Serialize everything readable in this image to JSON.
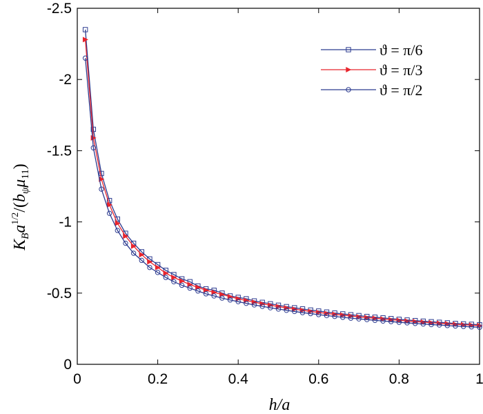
{
  "chart_data": {
    "type": "line",
    "title": "",
    "xlabel": "h/a",
    "ylabel": "K_B a^{1/2}/(b_ψ μ_11)",
    "xlim": [
      0,
      1
    ],
    "ylim": [
      0,
      -2.5
    ],
    "y_axis_reversed": true,
    "x_ticks": [
      0,
      0.2,
      0.4,
      0.6,
      0.8,
      1
    ],
    "x_tick_labels": [
      "0",
      "0.2",
      "0.4",
      "0.6",
      "0.8",
      "1"
    ],
    "y_ticks": [
      0,
      -0.5,
      -1,
      -1.5,
      -2,
      -2.5
    ],
    "y_tick_labels": [
      "0",
      "-0.5",
      "-1",
      "-1.5",
      "-2",
      "-2.5"
    ],
    "grid": false,
    "legend_position": "top-right",
    "x": [
      0.02,
      0.04,
      0.06,
      0.08,
      0.1,
      0.12,
      0.14,
      0.16,
      0.18,
      0.2,
      0.22,
      0.24,
      0.26,
      0.28,
      0.3,
      0.32,
      0.34,
      0.36,
      0.38,
      0.4,
      0.42,
      0.44,
      0.46,
      0.48,
      0.5,
      0.52,
      0.54,
      0.56,
      0.58,
      0.6,
      0.62,
      0.64,
      0.66,
      0.68,
      0.7,
      0.72,
      0.74,
      0.76,
      0.78,
      0.8,
      0.82,
      0.84,
      0.86,
      0.88,
      0.9,
      0.92,
      0.94,
      0.96,
      0.98,
      1.0
    ],
    "series": [
      {
        "name": "ϑ = π/6",
        "color": "#2b3a8f",
        "marker": "square",
        "values": [
          -2.35,
          -1.65,
          -1.34,
          -1.15,
          -1.02,
          -0.92,
          -0.85,
          -0.79,
          -0.74,
          -0.7,
          -0.66,
          -0.63,
          -0.6,
          -0.58,
          -0.55,
          -0.53,
          -0.52,
          -0.5,
          -0.48,
          -0.47,
          -0.46,
          -0.445,
          -0.435,
          -0.425,
          -0.415,
          -0.405,
          -0.397,
          -0.389,
          -0.381,
          -0.374,
          -0.367,
          -0.36,
          -0.354,
          -0.348,
          -0.342,
          -0.336,
          -0.331,
          -0.326,
          -0.321,
          -0.316,
          -0.311,
          -0.307,
          -0.303,
          -0.299,
          -0.295,
          -0.291,
          -0.287,
          -0.284,
          -0.281,
          -0.278
        ]
      },
      {
        "name": "ϑ = π/3",
        "color": "#e8242c",
        "marker": "triangle-right",
        "values": [
          -2.28,
          -1.59,
          -1.3,
          -1.12,
          -0.99,
          -0.9,
          -0.83,
          -0.77,
          -0.72,
          -0.68,
          -0.64,
          -0.61,
          -0.585,
          -0.56,
          -0.54,
          -0.52,
          -0.505,
          -0.49,
          -0.475,
          -0.46,
          -0.448,
          -0.436,
          -0.425,
          -0.415,
          -0.405,
          -0.396,
          -0.387,
          -0.379,
          -0.371,
          -0.364,
          -0.357,
          -0.351,
          -0.345,
          -0.339,
          -0.333,
          -0.328,
          -0.323,
          -0.318,
          -0.313,
          -0.309,
          -0.304,
          -0.3,
          -0.296,
          -0.292,
          -0.288,
          -0.285,
          -0.281,
          -0.278,
          -0.275,
          -0.272
        ]
      },
      {
        "name": "ϑ = π/2",
        "color": "#2b3a8f",
        "marker": "circle",
        "values": [
          -2.15,
          -1.52,
          -1.23,
          -1.06,
          -0.94,
          -0.85,
          -0.78,
          -0.73,
          -0.68,
          -0.645,
          -0.61,
          -0.58,
          -0.555,
          -0.535,
          -0.515,
          -0.495,
          -0.48,
          -0.465,
          -0.452,
          -0.44,
          -0.428,
          -0.417,
          -0.407,
          -0.397,
          -0.388,
          -0.379,
          -0.371,
          -0.363,
          -0.356,
          -0.349,
          -0.342,
          -0.336,
          -0.33,
          -0.324,
          -0.319,
          -0.314,
          -0.309,
          -0.304,
          -0.3,
          -0.295,
          -0.291,
          -0.287,
          -0.283,
          -0.279,
          -0.276,
          -0.272,
          -0.269,
          -0.266,
          -0.263,
          -0.26
        ]
      }
    ]
  }
}
